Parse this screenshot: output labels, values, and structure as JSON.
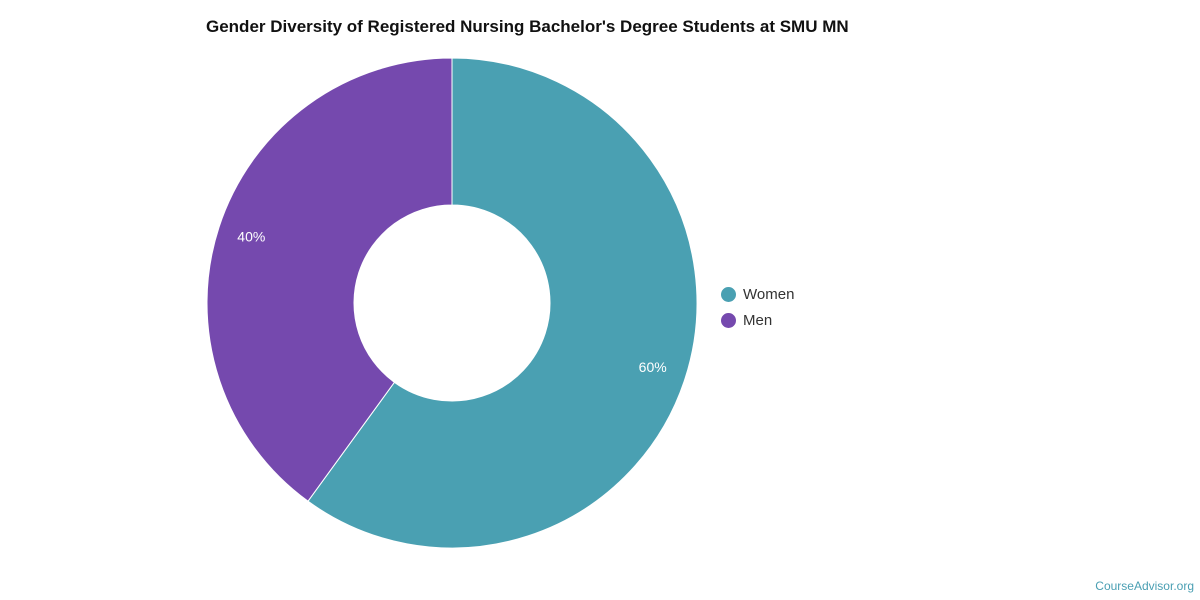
{
  "chart_data": {
    "type": "pie",
    "variant": "donut",
    "title": "Gender Diversity of Registered Nursing Bachelor's Degree Students at SMU MN",
    "categories": [
      "Women",
      "Men"
    ],
    "values": [
      60,
      40
    ],
    "value_labels": [
      "60%",
      "40%"
    ],
    "colors": [
      "#4aa0b2",
      "#7549ae"
    ],
    "legend_position": "right"
  },
  "watermark": "CourseAdvisor.org"
}
